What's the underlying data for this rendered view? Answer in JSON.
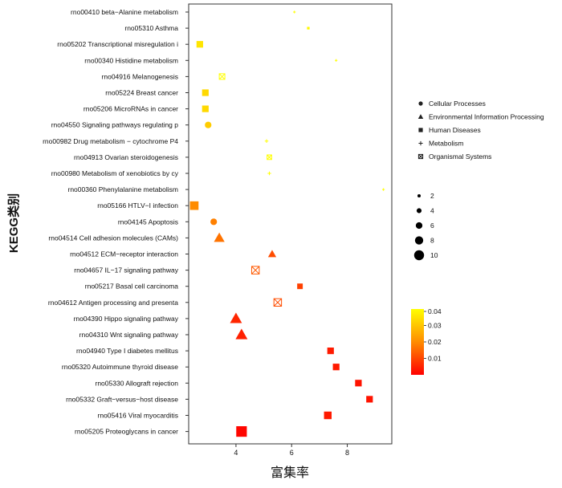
{
  "chart_data": {
    "type": "scatter",
    "xlabel": "富集率",
    "ylabel": "KEGG类别",
    "xlim": [
      2.3,
      9.6
    ],
    "x_ticks": [
      "4",
      "6",
      "8"
    ],
    "x_tick_values": [
      4,
      6,
      8
    ],
    "grid": false,
    "points": [
      {
        "term": "rno00410 beta−Alanine metabolism",
        "x": 6.1,
        "size": 1,
        "p": 0.04,
        "class": "Metabolism"
      },
      {
        "term": "rno05310 Asthma",
        "x": 6.6,
        "size": 1,
        "p": 0.039,
        "class": "Human Diseases"
      },
      {
        "term": "rno05202 Transcriptional misregulation i",
        "x": 2.7,
        "size": 5,
        "p": 0.036,
        "class": "Human Diseases"
      },
      {
        "term": "rno00340 Histidine metabolism",
        "x": 7.6,
        "size": 1,
        "p": 0.04,
        "class": "Metabolism"
      },
      {
        "term": "rno04916 Melanogenesis",
        "x": 3.5,
        "size": 4,
        "p": 0.04,
        "class": "Organismal Systems"
      },
      {
        "term": "rno05224 Breast cancer",
        "x": 2.9,
        "size": 5,
        "p": 0.034,
        "class": "Human Diseases"
      },
      {
        "term": "rno05206 MicroRNAs in cancer",
        "x": 2.9,
        "size": 5,
        "p": 0.034,
        "class": "Human Diseases"
      },
      {
        "term": "rno04550 Signaling pathways regulating p",
        "x": 3.0,
        "size": 5,
        "p": 0.032,
        "class": "Cellular Processes"
      },
      {
        "term": "rno00982 Drug metabolism − cytochrome P4",
        "x": 5.1,
        "size": 2,
        "p": 0.04,
        "class": "Metabolism"
      },
      {
        "term": "rno04913 Ovarian steroidogenesis",
        "x": 5.2,
        "size": 3,
        "p": 0.04,
        "class": "Organismal Systems"
      },
      {
        "term": "rno00980 Metabolism of xenobiotics by cy",
        "x": 5.2,
        "size": 2,
        "p": 0.04,
        "class": "Metabolism"
      },
      {
        "term": "rno00360 Phenylalanine metabolism",
        "x": 9.3,
        "size": 1,
        "p": 0.04,
        "class": "Metabolism"
      },
      {
        "term": "rno05166 HTLV−I infection",
        "x": 2.5,
        "size": 7,
        "p": 0.022,
        "class": "Human Diseases"
      },
      {
        "term": "rno04145 Apoptosis",
        "x": 3.2,
        "size": 5,
        "p": 0.02,
        "class": "Cellular Processes"
      },
      {
        "term": "rno04514 Cell adhesion molecules (CAMs)",
        "x": 3.4,
        "size": 7,
        "p": 0.018,
        "class": "Environmental Information Processing"
      },
      {
        "term": "rno04512 ECM−receptor interaction",
        "x": 5.3,
        "size": 5,
        "p": 0.012,
        "class": "Environmental Information Processing"
      },
      {
        "term": "rno04657 IL−17 signaling pathway",
        "x": 4.7,
        "size": 6,
        "p": 0.014,
        "class": "Organismal Systems"
      },
      {
        "term": "rno05217 Basal cell carcinoma",
        "x": 6.3,
        "size": 4,
        "p": 0.01,
        "class": "Human Diseases"
      },
      {
        "term": "rno04612 Antigen processing and presenta",
        "x": 5.5,
        "size": 6,
        "p": 0.012,
        "class": "Organismal Systems"
      },
      {
        "term": "rno04390 Hippo signaling pathway",
        "x": 4.0,
        "size": 8,
        "p": 0.006,
        "class": "Environmental Information Processing"
      },
      {
        "term": "rno04310 Wnt signaling pathway",
        "x": 4.2,
        "size": 8,
        "p": 0.005,
        "class": "Environmental Information Processing"
      },
      {
        "term": "rno04940 Type I diabetes mellitus",
        "x": 7.4,
        "size": 5,
        "p": 0.004,
        "class": "Human Diseases"
      },
      {
        "term": "rno05320 Autoimmune thyroid disease",
        "x": 7.6,
        "size": 5,
        "p": 0.004,
        "class": "Human Diseases"
      },
      {
        "term": "rno05330 Allograft rejection",
        "x": 8.4,
        "size": 5,
        "p": 0.003,
        "class": "Human Diseases"
      },
      {
        "term": "rno05332 Graft−versus−host disease",
        "x": 8.8,
        "size": 5,
        "p": 0.003,
        "class": "Human Diseases"
      },
      {
        "term": "rno05416 Viral myocarditis",
        "x": 7.3,
        "size": 6,
        "p": 0.004,
        "class": "Human Diseases"
      },
      {
        "term": "rno05205 Proteoglycans in cancer",
        "x": 4.2,
        "size": 9,
        "p": 0.001,
        "class": "Human Diseases"
      }
    ],
    "legend_shape": {
      "placement": "right",
      "items": [
        {
          "label": "Cellular Processes",
          "shape": "circle"
        },
        {
          "label": "Environmental Information Processing",
          "shape": "triangle"
        },
        {
          "label": "Human Diseases",
          "shape": "square"
        },
        {
          "label": "Metabolism",
          "shape": "plus"
        },
        {
          "label": "Organismal Systems",
          "shape": "boxed-x"
        }
      ]
    },
    "legend_size": {
      "placement": "right",
      "items": [
        {
          "label": "2",
          "value": 2
        },
        {
          "label": "4",
          "value": 4
        },
        {
          "label": "6",
          "value": 6
        },
        {
          "label": "8",
          "value": 8
        },
        {
          "label": "10",
          "value": 10
        }
      ]
    },
    "legend_color": {
      "placement": "right",
      "range": [
        0,
        0.04
      ],
      "ticks": [
        "0.04",
        "0.03",
        "0.02",
        "0.01"
      ],
      "tick_values": [
        0.04,
        0.03,
        0.02,
        0.01
      ],
      "low_color": "#ff0000",
      "high_color": "#ffff00"
    }
  }
}
